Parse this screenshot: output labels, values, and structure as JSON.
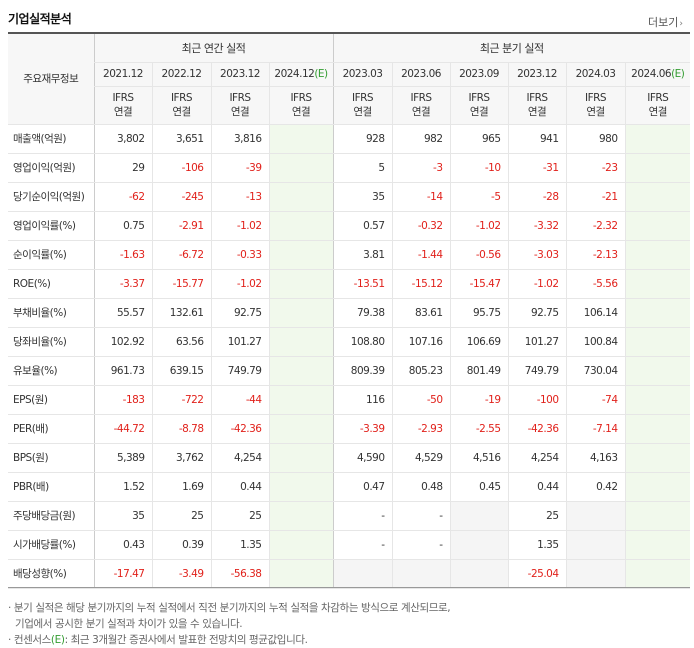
{
  "section_title": "기업실적분석",
  "more_label": "더보기",
  "header": {
    "row_label": "주요재무정보",
    "annual_group": "최근 연간 실적",
    "quarter_group": "최근 분기 실적",
    "annual_periods": [
      {
        "label": "2021.12",
        "est": ""
      },
      {
        "label": "2022.12",
        "est": ""
      },
      {
        "label": "2023.12",
        "est": ""
      },
      {
        "label": "2024.12",
        "est": "(E)"
      }
    ],
    "quarter_periods": [
      {
        "label": "2023.03",
        "est": ""
      },
      {
        "label": "2023.06",
        "est": ""
      },
      {
        "label": "2023.09",
        "est": ""
      },
      {
        "label": "2023.12",
        "est": ""
      },
      {
        "label": "2024.03",
        "est": ""
      },
      {
        "label": "2024.06",
        "est": "(E)"
      }
    ],
    "standard_top": "IFRS",
    "standard_bottom": "연결"
  },
  "rows": [
    {
      "label": "매출액(억원)",
      "values": [
        "3,802",
        "3,651",
        "3,816",
        "",
        "928",
        "982",
        "965",
        "941",
        "980",
        ""
      ]
    },
    {
      "label": "영업이익(억원)",
      "values": [
        "29",
        "-106",
        "-39",
        "",
        "5",
        "-3",
        "-10",
        "-31",
        "-23",
        ""
      ]
    },
    {
      "label": "당기순이익(억원)",
      "values": [
        "-62",
        "-245",
        "-13",
        "",
        "35",
        "-14",
        "-5",
        "-28",
        "-21",
        ""
      ]
    },
    {
      "label": "영업이익률(%)",
      "values": [
        "0.75",
        "-2.91",
        "-1.02",
        "",
        "0.57",
        "-0.32",
        "-1.02",
        "-3.32",
        "-2.32",
        ""
      ]
    },
    {
      "label": "순이익률(%)",
      "values": [
        "-1.63",
        "-6.72",
        "-0.33",
        "",
        "3.81",
        "-1.44",
        "-0.56",
        "-3.03",
        "-2.13",
        ""
      ]
    },
    {
      "label": "ROE(%)",
      "values": [
        "-3.37",
        "-15.77",
        "-1.02",
        "",
        "-13.51",
        "-15.12",
        "-15.47",
        "-1.02",
        "-5.56",
        ""
      ]
    },
    {
      "label": "부채비율(%)",
      "values": [
        "55.57",
        "132.61",
        "92.75",
        "",
        "79.38",
        "83.61",
        "95.75",
        "92.75",
        "106.14",
        ""
      ]
    },
    {
      "label": "당좌비율(%)",
      "values": [
        "102.92",
        "63.56",
        "101.27",
        "",
        "108.80",
        "107.16",
        "106.69",
        "101.27",
        "100.84",
        ""
      ]
    },
    {
      "label": "유보율(%)",
      "values": [
        "961.73",
        "639.15",
        "749.79",
        "",
        "809.39",
        "805.23",
        "801.49",
        "749.79",
        "730.04",
        ""
      ]
    },
    {
      "label": "EPS(원)",
      "values": [
        "-183",
        "-722",
        "-44",
        "",
        "116",
        "-50",
        "-19",
        "-100",
        "-74",
        ""
      ]
    },
    {
      "label": "PER(배)",
      "values": [
        "-44.72",
        "-8.78",
        "-42.36",
        "",
        "-3.39",
        "-2.93",
        "-2.55",
        "-42.36",
        "-7.14",
        ""
      ]
    },
    {
      "label": "BPS(원)",
      "values": [
        "5,389",
        "3,762",
        "4,254",
        "",
        "4,590",
        "4,529",
        "4,516",
        "4,254",
        "4,163",
        ""
      ]
    },
    {
      "label": "PBR(배)",
      "values": [
        "1.52",
        "1.69",
        "0.44",
        "",
        "0.47",
        "0.48",
        "0.45",
        "0.44",
        "0.42",
        ""
      ]
    },
    {
      "label": "주당배당금(원)",
      "values": [
        "35",
        "25",
        "25",
        "",
        "-",
        "-",
        "",
        "25",
        "",
        ""
      ]
    },
    {
      "label": "시가배당률(%)",
      "values": [
        "0.43",
        "0.39",
        "1.35",
        "",
        "-",
        "-",
        "",
        "1.35",
        "",
        ""
      ]
    },
    {
      "label": "배당성향(%)",
      "values": [
        "-17.47",
        "-3.49",
        "-56.38",
        "",
        "",
        "",
        "",
        "-25.04",
        "",
        ""
      ]
    }
  ],
  "notes": {
    "note1": "· 분기 실적은 해당 분기까지의 누적 실적에서 직전 분기까지의 누적 실적을 차감하는 방식으로 계산되므로,",
    "note1_cont": "기업에서 공시한 분기 실적과 차이가 있을 수 있습니다.",
    "note2_prefix": "· 컨센서스",
    "note2_e": "(E)",
    "note2_suffix": ": 최근 3개월간 증권사에서 발표한 전망치의 평균값입니다."
  },
  "colors": {
    "negative": "#e1211b",
    "standard": "#eb7000",
    "estimate": "#359e33",
    "estimate_bg": "#f1f9ec"
  }
}
